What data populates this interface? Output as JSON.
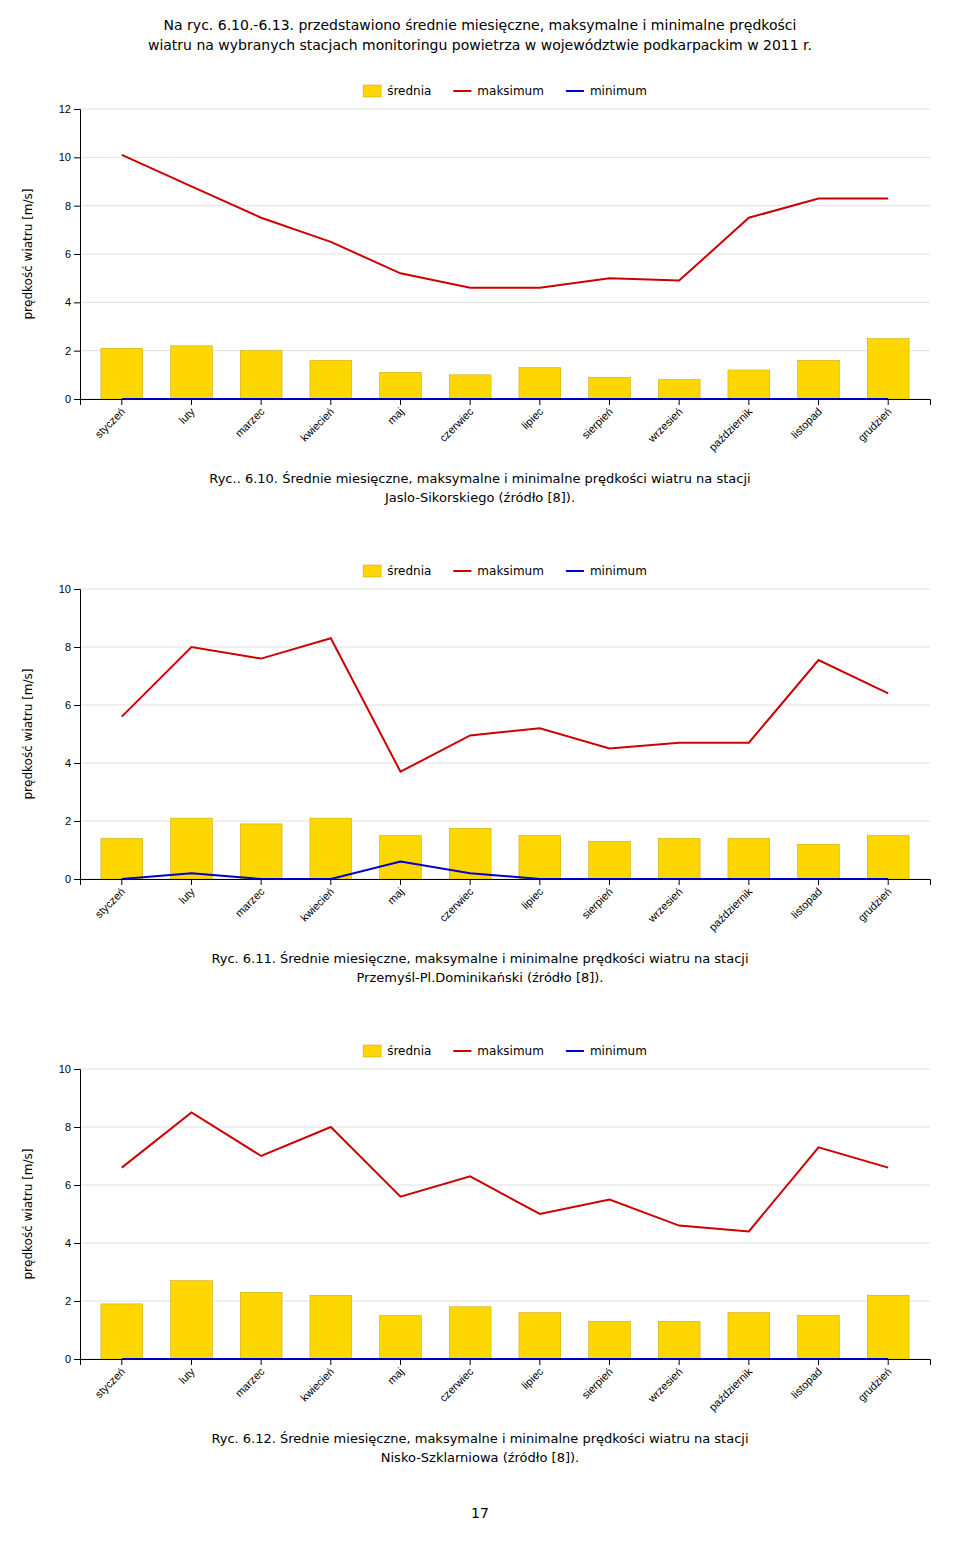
{
  "title": [
    "Na ryc. 6.10.-6.13. przedstawiono średnie miesięczne, maksymalne i minimalne prędkości",
    "wiatru na wybranych stacjach monitoringu powietrza w województwie podkarpackim w 2011 r."
  ],
  "annotations": [
    "17"
  ],
  "chart_data": [
    {
      "type": "bar",
      "title": [
        "Ryc.. 6.10. Średnie miesięczne, maksymalne i minimalne prędkości wiatru na stacji",
        "Jaslo-Sikorskiego (źródło [8])."
      ],
      "categories": [
        "styczeń",
        "luty",
        "marzec",
        "kwiecień",
        "maj",
        "czerwiec",
        "lipiec",
        "sierpień",
        "wrzesień",
        "październik",
        "listopad",
        "grudzień"
      ],
      "series": [
        {
          "name": "średnia",
          "type": "bar",
          "color": "#FFD700",
          "values": [
            2.1,
            2.2,
            2.0,
            1.6,
            1.1,
            1.0,
            1.3,
            0.9,
            0.8,
            1.2,
            1.6,
            2.5
          ]
        },
        {
          "name": "maksimum",
          "type": "line",
          "color": "#CC0000",
          "values": [
            10.1,
            8.8,
            7.5,
            6.5,
            5.2,
            4.6,
            4.6,
            5.0,
            4.9,
            7.5,
            8.3,
            8.3
          ]
        },
        {
          "name": "minimum",
          "type": "line",
          "color": "#0000CC",
          "values": [
            0.0,
            0.0,
            0.0,
            0.0,
            0.0,
            0.0,
            0.0,
            0.0,
            0.0,
            0.0,
            0.0,
            0.0
          ]
        }
      ],
      "ylabel": "prędkość wiatru [m/s]",
      "ylim": [
        0,
        12
      ],
      "yticks": [
        0,
        2,
        4,
        6,
        8,
        10,
        12
      ],
      "grid": true,
      "legend": "top"
    },
    {
      "type": "bar",
      "title": [
        "Ryc. 6.11. Średnie miesięczne, maksymalne i minimalne prędkości wiatru na stacji",
        "Przemyśl-Pl.Dominikański (źródło [8])."
      ],
      "categories": [
        "styczeń",
        "luty",
        "marzec",
        "kwiecień",
        "maj",
        "czerwiec",
        "lipiec",
        "sierpień",
        "wrzesień",
        "październik",
        "listopad",
        "grudzień"
      ],
      "series": [
        {
          "name": "średnia",
          "type": "bar",
          "color": "#FFD700",
          "values": [
            1.4,
            2.1,
            1.9,
            2.1,
            1.5,
            1.75,
            1.5,
            1.3,
            1.4,
            1.4,
            1.2,
            1.5
          ]
        },
        {
          "name": "maksimum",
          "type": "line",
          "color": "#CC0000",
          "values": [
            5.6,
            8.0,
            7.6,
            8.3,
            3.7,
            4.95,
            5.2,
            4.5,
            4.7,
            4.7,
            7.55,
            6.4
          ]
        },
        {
          "name": "minimum",
          "type": "line",
          "color": "#0000CC",
          "values": [
            0.0,
            0.2,
            0.0,
            0.0,
            0.6,
            0.2,
            0.0,
            0.0,
            0.0,
            0.0,
            0.0,
            0.0
          ]
        }
      ],
      "ylabel": "prędkość wiatru [m/s]",
      "ylim": [
        0,
        10
      ],
      "yticks": [
        0,
        2,
        4,
        6,
        8,
        10
      ],
      "grid": true,
      "legend": "top"
    },
    {
      "type": "bar",
      "title": [
        "Ryc. 6.12. Średnie miesięczne, maksymalne i minimalne prędkości wiatru na stacji",
        "Nisko-Szklarniowa (źródło [8])."
      ],
      "categories": [
        "styczeń",
        "luty",
        "marzec",
        "kwiecień",
        "maj",
        "czerwiec",
        "lipiec",
        "sierpień",
        "wrzesień",
        "październik",
        "listopad",
        "grudzień"
      ],
      "series": [
        {
          "name": "średnia",
          "type": "bar",
          "color": "#FFD700",
          "values": [
            1.9,
            2.7,
            2.3,
            2.2,
            1.5,
            1.8,
            1.6,
            1.3,
            1.3,
            1.6,
            1.5,
            2.2
          ]
        },
        {
          "name": "maksimum",
          "type": "line",
          "color": "#CC0000",
          "values": [
            6.6,
            8.5,
            7.0,
            8.0,
            5.6,
            6.3,
            5.0,
            5.5,
            4.6,
            4.4,
            7.3,
            6.6
          ]
        },
        {
          "name": "minimum",
          "type": "line",
          "color": "#0000CC",
          "values": [
            0.0,
            0.0,
            0.0,
            0.0,
            0.0,
            0.0,
            0.0,
            0.0,
            0.0,
            0.0,
            0.0,
            0.0
          ]
        }
      ],
      "ylabel": "prędkość wiatru [m/s]",
      "ylim": [
        0,
        10
      ],
      "yticks": [
        0,
        2,
        4,
        6,
        8,
        10
      ],
      "grid": true,
      "legend": "top"
    }
  ]
}
